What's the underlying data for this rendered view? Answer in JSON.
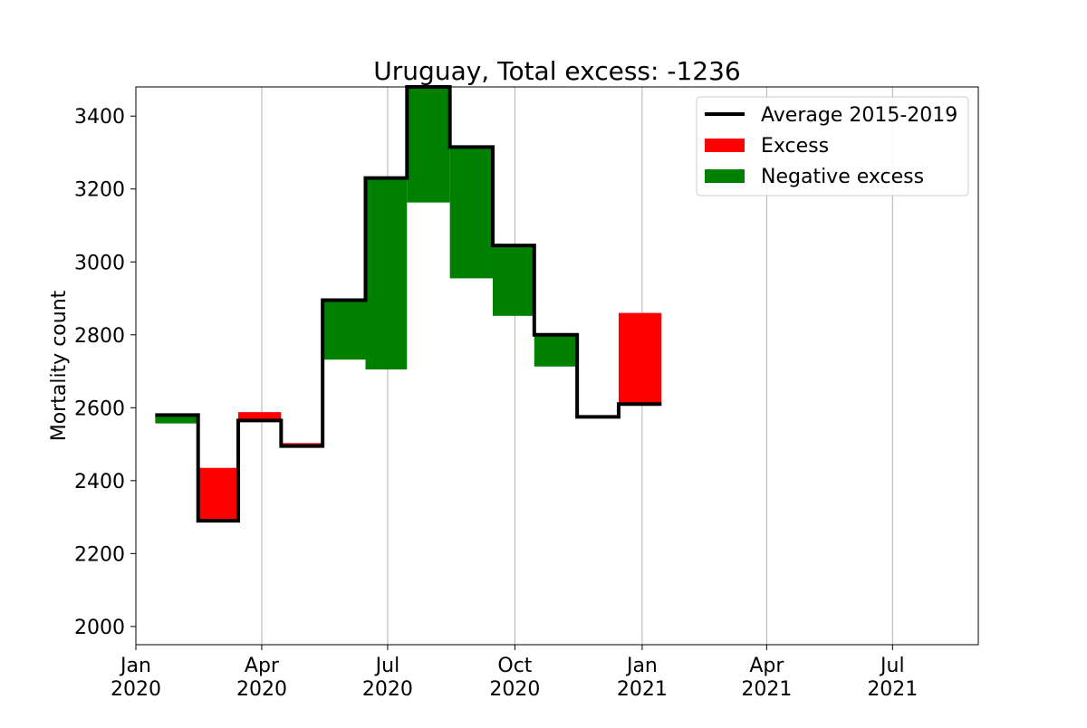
{
  "chart_data": {
    "type": "step",
    "title": "Uruguay, Total excess: -1236",
    "xlabel": "",
    "ylabel": "Mortality count",
    "ylim": [
      1950,
      3480
    ],
    "xlim": [
      "2020-01-01",
      "2021-09-01"
    ],
    "grid": {
      "x": true,
      "y": false
    },
    "legend_position": "top-right",
    "x_ticks": [
      {
        "date": "2020-01-01",
        "label": [
          "Jan",
          "2020"
        ]
      },
      {
        "date": "2020-04-01",
        "label": [
          "Apr",
          "2020"
        ]
      },
      {
        "date": "2020-07-01",
        "label": [
          "Jul",
          "2020"
        ]
      },
      {
        "date": "2020-10-01",
        "label": [
          "Oct",
          "2020"
        ]
      },
      {
        "date": "2021-01-01",
        "label": [
          "Jan",
          "2021"
        ]
      },
      {
        "date": "2021-04-01",
        "label": [
          "Apr",
          "2021"
        ]
      },
      {
        "date": "2021-07-01",
        "label": [
          "Jul",
          "2021"
        ]
      }
    ],
    "y_ticks": [
      2000,
      2200,
      2400,
      2600,
      2800,
      3000,
      3200,
      3400
    ],
    "periods": [
      "2020-01-15",
      "2020-02-15",
      "2020-03-15",
      "2020-04-15",
      "2020-05-15",
      "2020-06-15",
      "2020-07-15",
      "2020-08-15",
      "2020-09-15",
      "2020-10-15",
      "2020-11-15",
      "2020-12-15",
      "2021-01-15"
    ],
    "series": [
      {
        "name": "Average 2015-2019",
        "kind": "line",
        "color": "#000000",
        "values": [
          2580,
          2290,
          2565,
          2495,
          2895,
          3230,
          3495,
          3315,
          3045,
          2800,
          2575,
          2610
        ]
      },
      {
        "name": "Excess",
        "kind": "fill",
        "color": "#ff0000"
      },
      {
        "name": "Negative excess",
        "kind": "fill",
        "color": "#008000"
      }
    ],
    "actual": [
      2557,
      2435,
      2588,
      2503,
      2732,
      2705,
      3163,
      2955,
      2852,
      2713,
      2575,
      2860
    ]
  }
}
